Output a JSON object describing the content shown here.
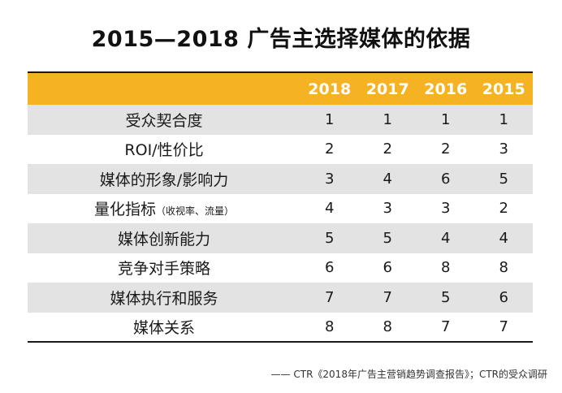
{
  "title": "2015—2018 广告主选择媒体的依据",
  "chart_data": {
    "type": "table",
    "columns": [
      "2018",
      "2017",
      "2016",
      "2015"
    ],
    "rows": [
      {
        "label": "受众契合度",
        "note": "",
        "values": [
          1,
          1,
          1,
          1
        ]
      },
      {
        "label": "ROI/性价比",
        "note": "",
        "values": [
          2,
          2,
          2,
          3
        ]
      },
      {
        "label": "媒体的形象/影响力",
        "note": "",
        "values": [
          3,
          4,
          6,
          5
        ]
      },
      {
        "label": "量化指标",
        "note": "（收视率、流量）",
        "values": [
          4,
          3,
          3,
          2
        ]
      },
      {
        "label": "媒体创新能力",
        "note": "",
        "values": [
          5,
          5,
          4,
          4
        ]
      },
      {
        "label": "竞争对手策略",
        "note": "",
        "values": [
          6,
          6,
          8,
          8
        ]
      },
      {
        "label": "媒体执行和服务",
        "note": "",
        "values": [
          7,
          7,
          5,
          6
        ]
      },
      {
        "label": "媒体关系",
        "note": "",
        "values": [
          8,
          8,
          7,
          7
        ]
      }
    ]
  },
  "source": "—— CTR《2018年广告主营销趋势调查报告》；CTR的受众调研",
  "colors": {
    "header_bg": "#f5b324",
    "row_shade": "#e3e3e3"
  }
}
